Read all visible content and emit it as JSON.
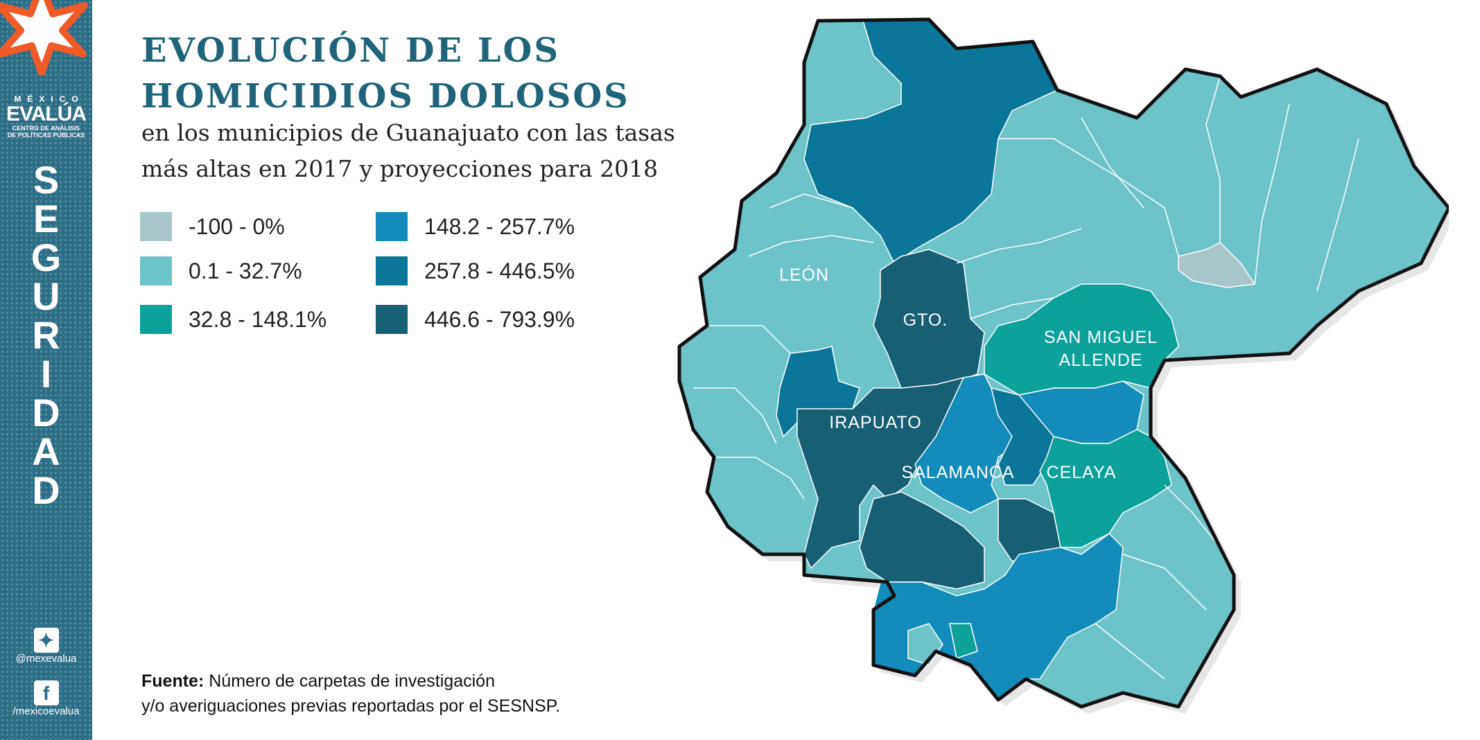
{
  "brand": {
    "country": "MÉXICO",
    "name": "EVALÚA",
    "tagline_1": "CENTRO DE ANÁLISIS",
    "tagline_2": "DE POLÍTICAS PÚBLICAS"
  },
  "section_letters": [
    "S",
    "E",
    "G",
    "U",
    "R",
    "I",
    "D",
    "A",
    "D"
  ],
  "social": {
    "twitter_handle": "@mexevalua",
    "facebook_handle": "/mexicoevalua",
    "twitter_icon": "twitter-icon",
    "facebook_icon": "facebook-icon"
  },
  "title": {
    "line1": "EVOLUCIÓN DE LOS",
    "line2": "HOMICIDIOS DOLOSOS"
  },
  "subtitle": {
    "line1": "en los municipios de Guanajuato con las tasas",
    "line2": "más altas en 2017 y proyecciones para 2018"
  },
  "legend": [
    {
      "label": "-100 - 0%",
      "color": "#a9c7ca"
    },
    {
      "label": "0.1 - 32.7%",
      "color": "#6cc3c8"
    },
    {
      "label": "32.8 - 148.1%",
      "color": "#0ca19a"
    },
    {
      "label": "148.2 - 257.7%",
      "color": "#148cbb"
    },
    {
      "label": "257.8 - 446.5%",
      "color": "#0b7699"
    },
    {
      "label": "446.6 - 793.9%",
      "color": "#165f75"
    }
  ],
  "map_labels": {
    "leon": "LEÓN",
    "gto": "GTO.",
    "irapuato": "IRAPUATO",
    "salamanca": "SALAMANCA",
    "celaya": "CELAYA",
    "san_miguel_1": "SAN MIGUEL",
    "san_miguel_2": "ALLENDE"
  },
  "source": {
    "bold": "Fuente:",
    "line1": "Número de carpetas de investigación",
    "line2": "y/o averiguaciones previas reportadas por el SESNSP."
  }
}
